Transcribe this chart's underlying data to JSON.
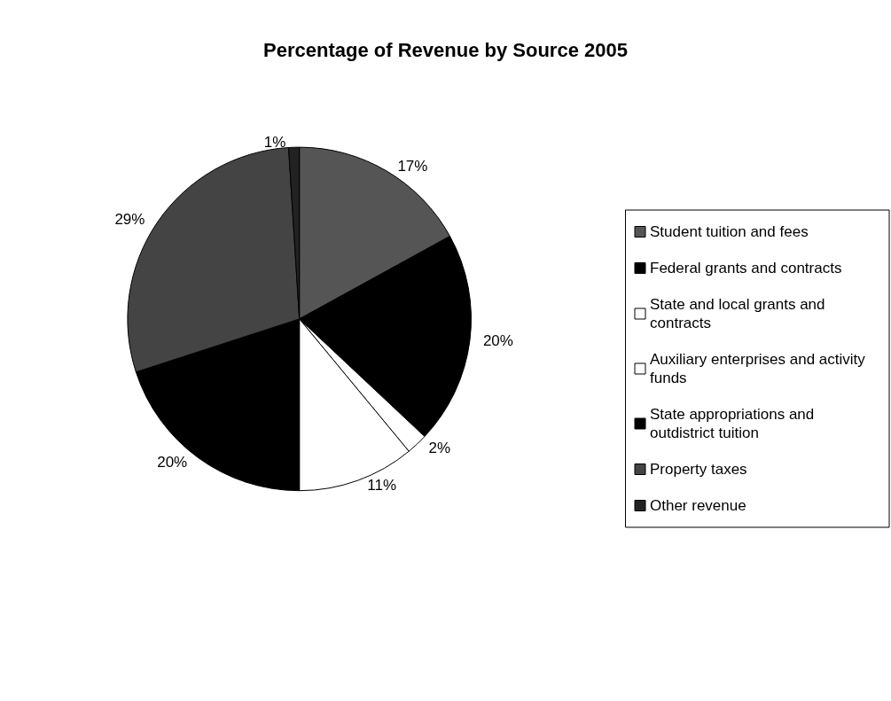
{
  "chart_data": {
    "type": "pie",
    "title": "Percentage of Revenue by Source 2005",
    "categories": [
      "Student tuition and fees",
      "Federal grants and contracts",
      "State and local grants and contracts",
      "Auxiliary enterprises and activity funds",
      "State appropriations and outdistrict tuition",
      "Property taxes",
      "Other revenue"
    ],
    "values": [
      17,
      20,
      2,
      11,
      20,
      29,
      1
    ],
    "colors": [
      "#555555",
      "#000000",
      "#ffffff",
      "#ffffff",
      "#000000",
      "#444444",
      "#222222"
    ],
    "value_labels": [
      "17%",
      "20%",
      "2%",
      "11%",
      "20%",
      "29%",
      "1%"
    ],
    "legend": "right"
  }
}
